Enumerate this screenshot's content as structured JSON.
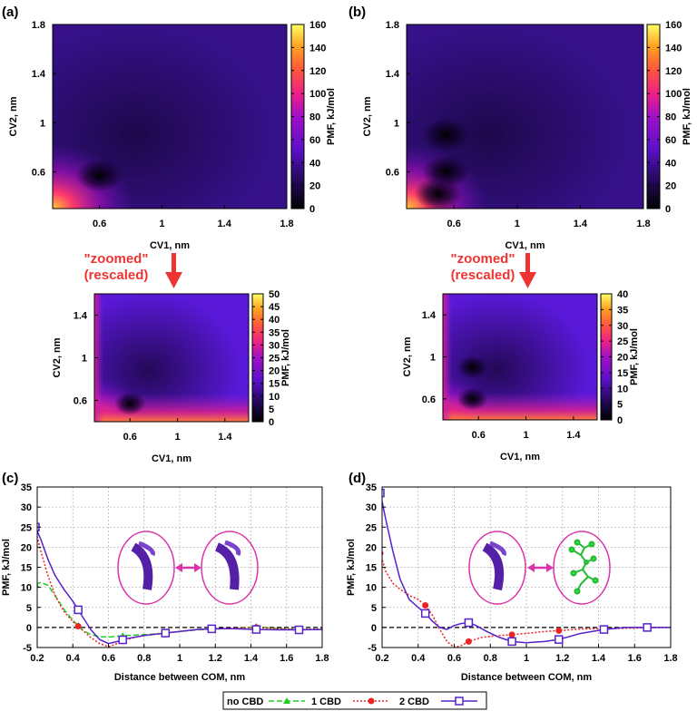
{
  "panels": {
    "a": {
      "label": "(a)"
    },
    "b": {
      "label": "(b)"
    },
    "c": {
      "label": "(c)"
    },
    "d": {
      "label": "(d)"
    }
  },
  "annotations": {
    "zoom_line1": "\"zoomed\"",
    "zoom_line2": "(rescaled)"
  },
  "chart_data": [
    {
      "id": "a-top",
      "type": "heatmap",
      "xlabel": "CV1, nm",
      "ylabel": "CV2, nm",
      "xlim": [
        0.3,
        1.8
      ],
      "ylim": [
        0.3,
        1.8
      ],
      "xticks": [
        0.6,
        1,
        1.4,
        1.8
      ],
      "yticks": [
        0.6,
        1,
        1.4,
        1.8
      ],
      "colorbar": {
        "label": "PMF, kJ/mol",
        "min": 0,
        "max": 160,
        "ticks": [
          0,
          20,
          40,
          60,
          80,
          100,
          120,
          140,
          160
        ]
      },
      "minima": [
        {
          "x": 0.6,
          "y": 0.57
        }
      ]
    },
    {
      "id": "b-top",
      "type": "heatmap",
      "xlabel": "CV1, nm",
      "ylabel": "CV2, nm",
      "xlim": [
        0.3,
        1.8
      ],
      "ylim": [
        0.3,
        1.8
      ],
      "xticks": [
        0.6,
        1,
        1.4,
        1.8
      ],
      "yticks": [
        0.6,
        1,
        1.4,
        1.8
      ],
      "colorbar": {
        "label": "PMF, kJ/mol",
        "min": 0,
        "max": 160,
        "ticks": [
          0,
          20,
          40,
          60,
          80,
          100,
          120,
          140,
          160
        ]
      },
      "minima": [
        {
          "x": 0.55,
          "y": 0.9
        },
        {
          "x": 0.55,
          "y": 0.6
        },
        {
          "x": 0.5,
          "y": 0.42
        }
      ]
    },
    {
      "id": "a-zoom",
      "type": "heatmap",
      "xlabel": "CV1, nm",
      "ylabel": "CV2, nm",
      "xlim": [
        0.3,
        1.6
      ],
      "ylim": [
        0.4,
        1.6
      ],
      "xticks": [
        0.6,
        1,
        1.4
      ],
      "yticks": [
        0.6,
        1,
        1.4
      ],
      "colorbar": {
        "label": "PMF, kJ/mol",
        "min": 0,
        "max": 50,
        "ticks": [
          0,
          5,
          10,
          15,
          20,
          25,
          30,
          35,
          40,
          45,
          50
        ]
      },
      "minima": [
        {
          "x": 0.6,
          "y": 0.57
        }
      ]
    },
    {
      "id": "b-zoom",
      "type": "heatmap",
      "xlabel": "CV1, nm",
      "ylabel": "CV2, nm",
      "xlim": [
        0.3,
        1.6
      ],
      "ylim": [
        0.4,
        1.6
      ],
      "xticks": [
        0.6,
        1,
        1.4
      ],
      "yticks": [
        0.6,
        1,
        1.4
      ],
      "colorbar": {
        "label": "PMF, kJ/mol",
        "min": 0,
        "max": 40,
        "ticks": [
          0,
          5,
          10,
          15,
          20,
          25,
          30,
          35,
          40
        ]
      },
      "minima": [
        {
          "x": 0.55,
          "y": 0.9
        },
        {
          "x": 0.55,
          "y": 0.6
        }
      ]
    },
    {
      "id": "c",
      "type": "line",
      "xlabel": "Distance between COM, nm",
      "ylabel": "PMF, kJ/mol",
      "xlim": [
        0.2,
        1.8
      ],
      "ylim": [
        -5,
        35
      ],
      "xticks": [
        0.2,
        0.4,
        0.6,
        0.8,
        1,
        1.2,
        1.4,
        1.6,
        1.8
      ],
      "yticks": [
        -5,
        0,
        5,
        10,
        15,
        20,
        25,
        30,
        35
      ],
      "grid": true,
      "series": [
        {
          "name": "no CBD",
          "color": "#22cc22",
          "marker": "triangle",
          "dash": "6,3",
          "x": [
            0.19,
            0.22,
            0.26,
            0.3,
            0.35,
            0.4,
            0.45,
            0.5,
            0.55,
            0.6,
            0.65,
            0.7,
            0.8,
            0.9,
            1.0,
            1.1,
            1.2,
            1.3,
            1.43,
            1.55,
            1.67,
            1.8
          ],
          "y": [
            10.8,
            11.2,
            10.5,
            8.0,
            4.5,
            1.8,
            -0.5,
            -1.8,
            -2.3,
            -2.4,
            -2.2,
            -2.0,
            -1.8,
            -1.5,
            -1.0,
            -0.6,
            -0.4,
            -0.3,
            0.2,
            -0.3,
            -0.5,
            -0.5
          ],
          "markers": [
            0.19,
            0.43,
            0.68,
            0.92,
            1.18,
            1.43,
            1.67
          ]
        },
        {
          "name": "1 CBD",
          "color": "#ee2222",
          "marker": "circle",
          "dash": "2,2",
          "x": [
            0.19,
            0.22,
            0.26,
            0.3,
            0.35,
            0.4,
            0.45,
            0.5,
            0.55,
            0.6,
            0.65,
            0.7,
            0.8,
            0.9,
            1.0,
            1.1,
            1.2,
            1.3,
            1.43,
            1.55,
            1.67,
            1.8
          ],
          "y": [
            24.5,
            19.0,
            13.0,
            8.0,
            4.0,
            1.5,
            -0.5,
            -2.5,
            -4.0,
            -4.8,
            -4.0,
            -3.0,
            -2.0,
            -1.5,
            -1.0,
            -0.5,
            -0.3,
            -0.2,
            0.0,
            -0.3,
            -0.5,
            -0.4
          ],
          "markers": [
            0.19,
            0.43,
            0.68,
            0.92,
            1.18,
            1.43,
            1.67
          ]
        },
        {
          "name": "2 CBD",
          "color": "#5522cc",
          "marker": "square",
          "dash": "",
          "x": [
            0.19,
            0.22,
            0.26,
            0.3,
            0.35,
            0.4,
            0.45,
            0.5,
            0.55,
            0.6,
            0.65,
            0.7,
            0.8,
            0.9,
            1.0,
            1.1,
            1.2,
            1.3,
            1.43,
            1.55,
            1.67,
            1.8
          ],
          "y": [
            25.0,
            22.0,
            17.0,
            13.0,
            9.5,
            6.5,
            3.0,
            -0.5,
            -3.0,
            -4.0,
            -3.5,
            -2.8,
            -2.0,
            -1.5,
            -1.0,
            -0.5,
            -0.3,
            -0.3,
            -0.5,
            -0.6,
            -0.6,
            -0.5
          ],
          "markers": [
            0.19,
            0.43,
            0.68,
            0.92,
            1.18,
            1.43,
            1.67
          ]
        }
      ]
    },
    {
      "id": "d",
      "type": "line",
      "xlabel": "Distance between COM, nm",
      "ylabel": "PMF, kJ/mol",
      "xlim": [
        0.2,
        1.8
      ],
      "ylim": [
        -5,
        35
      ],
      "xticks": [
        0.2,
        0.4,
        0.6,
        0.8,
        1,
        1.2,
        1.4,
        1.6,
        1.8
      ],
      "yticks": [
        -5,
        0,
        5,
        10,
        15,
        20,
        25,
        30,
        35
      ],
      "grid": true,
      "series": [
        {
          "name": "1 CBD",
          "color": "#ee2222",
          "marker": "circle",
          "dash": "2,2",
          "x": [
            0.19,
            0.22,
            0.26,
            0.3,
            0.35,
            0.4,
            0.44,
            0.48,
            0.52,
            0.56,
            0.6,
            0.64,
            0.68,
            0.75,
            0.85,
            0.92,
            1.0,
            1.1,
            1.18,
            1.3,
            1.43,
            1.55,
            1.67,
            1.8
          ],
          "y": [
            18.5,
            14.0,
            11.0,
            9.5,
            8.0,
            7.0,
            5.5,
            3.0,
            -0.5,
            -3.5,
            -5.0,
            -4.5,
            -3.5,
            -2.5,
            -2.0,
            -1.8,
            -1.5,
            -1.0,
            -0.8,
            -0.4,
            -0.3,
            -0.2,
            -0.1,
            0.0
          ],
          "markers": [
            0.19,
            0.44,
            0.68,
            0.92,
            1.18,
            1.43,
            1.67
          ]
        },
        {
          "name": "2 CBD",
          "color": "#5522cc",
          "marker": "square",
          "dash": "",
          "x": [
            0.19,
            0.22,
            0.26,
            0.3,
            0.35,
            0.4,
            0.44,
            0.48,
            0.52,
            0.56,
            0.6,
            0.64,
            0.68,
            0.72,
            0.78,
            0.85,
            0.92,
            1.0,
            1.1,
            1.18,
            1.3,
            1.43,
            1.55,
            1.67,
            1.8
          ],
          "y": [
            33.5,
            27.0,
            19.0,
            12.0,
            7.0,
            5.0,
            3.5,
            1.5,
            0.0,
            -0.5,
            0.5,
            1.0,
            1.2,
            0.5,
            -1.0,
            -2.5,
            -3.5,
            -3.8,
            -3.5,
            -3.0,
            -1.5,
            -0.5,
            0.0,
            0.0,
            0.0
          ],
          "markers": [
            0.19,
            0.44,
            0.68,
            0.92,
            1.18,
            1.43,
            1.67
          ]
        }
      ]
    }
  ],
  "legend": {
    "position": "bottom-center",
    "items": [
      {
        "name": "no CBD",
        "color": "#22cc22",
        "marker": "triangle",
        "dash": "6,3"
      },
      {
        "name": "1 CBD",
        "color": "#ee2222",
        "marker": "circle",
        "dash": "2,2"
      },
      {
        "name": "2 CBD",
        "color": "#5522cc",
        "marker": "square",
        "dash": ""
      }
    ]
  }
}
